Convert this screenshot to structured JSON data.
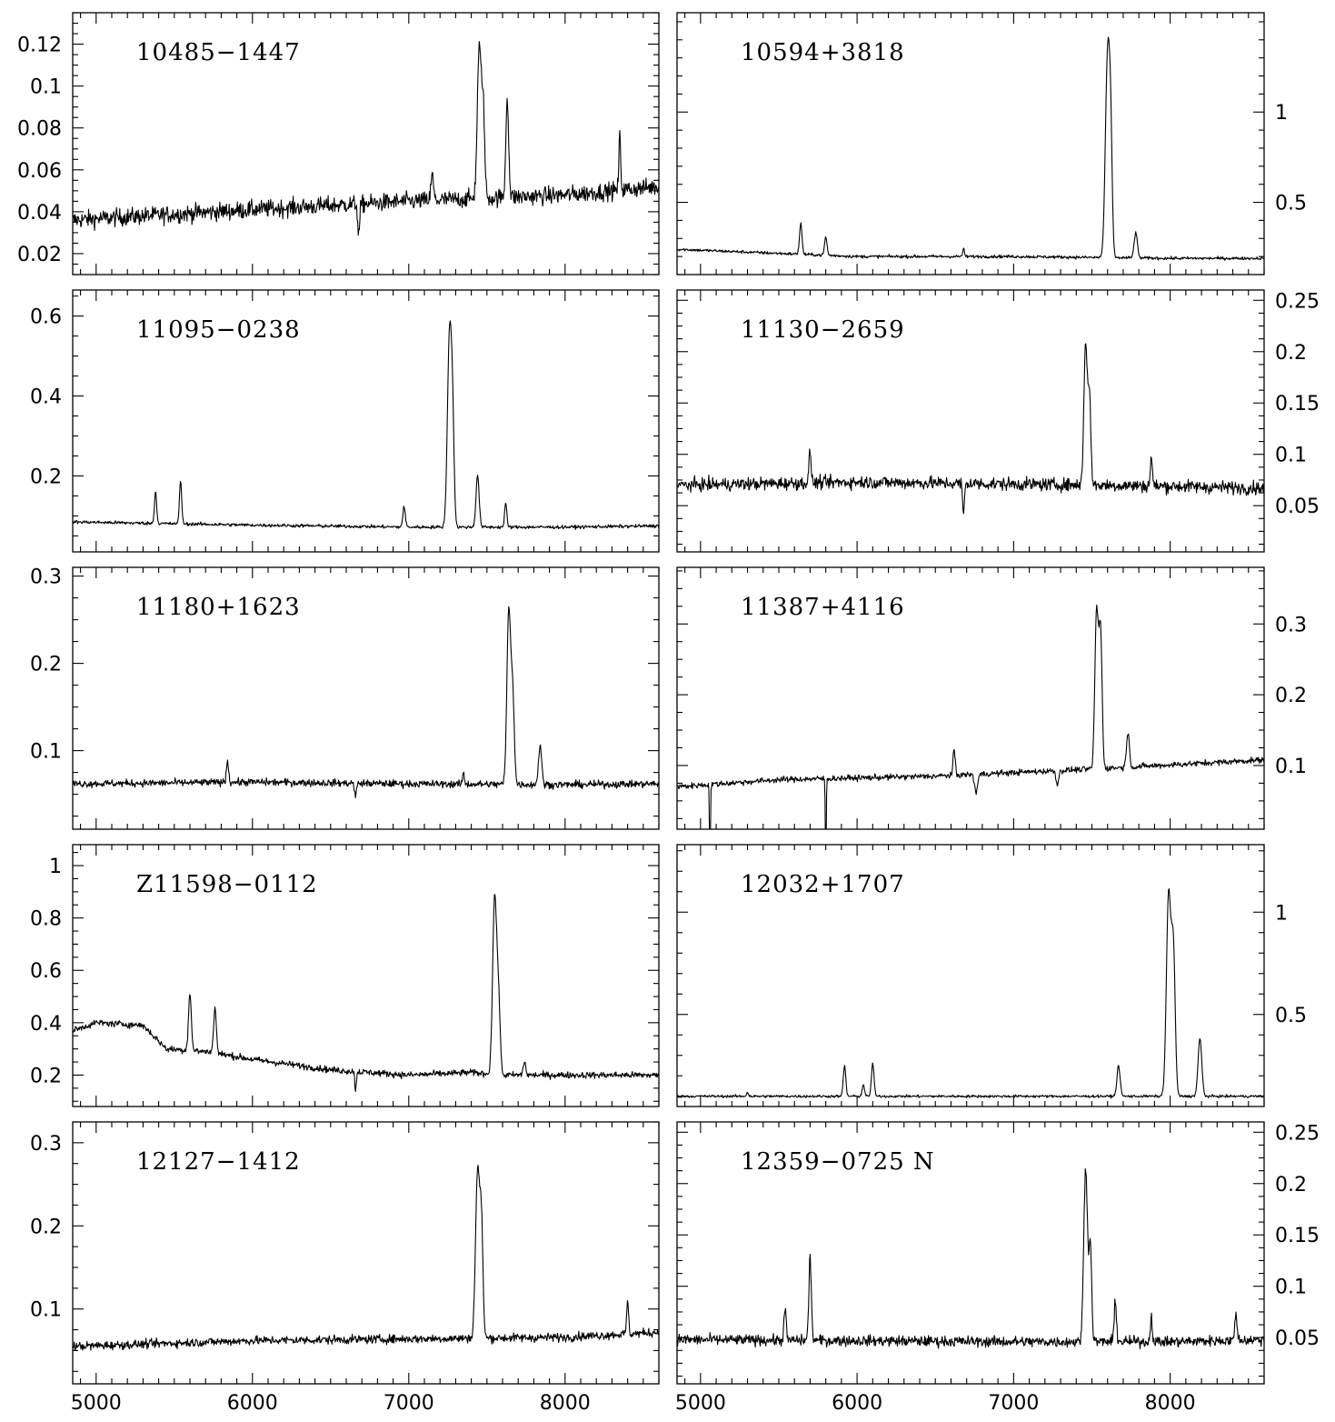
{
  "chart_data": {
    "type": "line",
    "layout": "5 rows x 2 columns, shared x axis",
    "x_axis": {
      "xlim": [
        4850,
        8600
      ],
      "ticks": [
        5000,
        6000,
        7000,
        8000
      ],
      "tick_labels": [
        "5000",
        "6000",
        "7000",
        "8000"
      ],
      "label": ""
    },
    "panels": [
      {
        "name": "10485−1447",
        "column": "left",
        "ylim": [
          0.01,
          0.135
        ],
        "yticks": [
          0.02,
          0.04,
          0.06,
          0.08,
          0.1,
          0.12
        ],
        "ytick_labels": [
          "0.02",
          "0.04",
          "0.06",
          "0.08",
          "0.1",
          "0.12"
        ],
        "continuum": [
          [
            4850,
            0.036
          ],
          [
            6000,
            0.041
          ],
          [
            7000,
            0.045
          ],
          [
            8000,
            0.048
          ],
          [
            8600,
            0.052
          ]
        ],
        "noise": 0.004,
        "lines": [
          [
            7150,
            0.012,
            8
          ],
          [
            7450,
            0.07,
            12
          ],
          [
            7475,
            0.045,
            10
          ],
          [
            7630,
            0.048,
            9
          ],
          [
            8350,
            0.025,
            6
          ],
          [
            6680,
            -0.015,
            6
          ]
        ]
      },
      {
        "name": "10594+3818",
        "column": "right",
        "ylim": [
          0.1,
          1.55
        ],
        "yticks": [
          0.5,
          1
        ],
        "ytick_labels": [
          "0.5",
          "1"
        ],
        "continuum": [
          [
            4850,
            0.24
          ],
          [
            6000,
            0.2
          ],
          [
            7000,
            0.2
          ],
          [
            8000,
            0.19
          ],
          [
            8600,
            0.19
          ]
        ],
        "noise": 0.008,
        "lines": [
          [
            5640,
            0.17,
            8
          ],
          [
            5800,
            0.1,
            8
          ],
          [
            7600,
            1.1,
            14
          ],
          [
            7620,
            0.55,
            10
          ],
          [
            7780,
            0.14,
            10
          ],
          [
            6680,
            0.04,
            6
          ]
        ]
      },
      {
        "name": "11095−0238",
        "column": "left",
        "ylim": [
          0.01,
          0.665
        ],
        "yticks": [
          0.2,
          0.4,
          0.6
        ],
        "ytick_labels": [
          "0.2",
          "0.4",
          "0.6"
        ],
        "continuum": [
          [
            4850,
            0.085
          ],
          [
            6000,
            0.077
          ],
          [
            7000,
            0.072
          ],
          [
            8000,
            0.072
          ],
          [
            8600,
            0.075
          ]
        ],
        "noise": 0.004,
        "lines": [
          [
            5380,
            0.08,
            7
          ],
          [
            5540,
            0.11,
            7
          ],
          [
            6970,
            0.05,
            8
          ],
          [
            7260,
            0.47,
            13
          ],
          [
            7280,
            0.24,
            10
          ],
          [
            7440,
            0.13,
            10
          ],
          [
            7620,
            0.06,
            7
          ]
        ]
      },
      {
        "name": "11130−2659",
        "column": "right",
        "ylim": [
          0.005,
          0.26
        ],
        "yticks": [
          0.05,
          0.1,
          0.15,
          0.2,
          0.25
        ],
        "ytick_labels": [
          "0.05",
          "0.1",
          "0.15",
          "0.2",
          "0.25"
        ],
        "continuum": [
          [
            4850,
            0.07
          ],
          [
            6000,
            0.073
          ],
          [
            7000,
            0.071
          ],
          [
            8000,
            0.069
          ],
          [
            8600,
            0.067
          ]
        ],
        "noise": 0.006,
        "lines": [
          [
            5700,
            0.03,
            7
          ],
          [
            7460,
            0.14,
            11
          ],
          [
            7485,
            0.08,
            9
          ],
          [
            7880,
            0.03,
            6
          ],
          [
            6680,
            -0.03,
            6
          ]
        ]
      },
      {
        "name": "11180+1623",
        "column": "left",
        "ylim": [
          0.01,
          0.31
        ],
        "yticks": [
          0.1,
          0.2,
          0.3
        ],
        "ytick_labels": [
          "0.1",
          "0.2",
          "0.3"
        ],
        "continuum": [
          [
            4850,
            0.062
          ],
          [
            6000,
            0.064
          ],
          [
            7000,
            0.062
          ],
          [
            8000,
            0.061
          ],
          [
            8600,
            0.062
          ]
        ],
        "noise": 0.004,
        "lines": [
          [
            5840,
            0.025,
            7
          ],
          [
            7640,
            0.2,
            12
          ],
          [
            7665,
            0.1,
            10
          ],
          [
            7840,
            0.045,
            10
          ],
          [
            7350,
            0.012,
            6
          ],
          [
            6660,
            -0.015,
            6
          ]
        ]
      },
      {
        "name": "11387+4116",
        "column": "right",
        "ylim": [
          0.01,
          0.38
        ],
        "yticks": [
          0.1,
          0.2,
          0.3
        ],
        "ytick_labels": [
          "0.1",
          "0.2",
          "0.3"
        ],
        "continuum": [
          [
            4850,
            0.07
          ],
          [
            5500,
            0.08
          ],
          [
            6500,
            0.085
          ],
          [
            7500,
            0.095
          ],
          [
            8600,
            0.108
          ]
        ],
        "noise": 0.004,
        "lines": [
          [
            6620,
            0.035,
            7
          ],
          [
            7530,
            0.22,
            11
          ],
          [
            7555,
            0.19,
            10
          ],
          [
            7730,
            0.05,
            9
          ],
          [
            6760,
            -0.025,
            10
          ],
          [
            7280,
            -0.02,
            8
          ],
          [
            5060,
            -0.12,
            3
          ],
          [
            5800,
            -0.12,
            3
          ]
        ]
      },
      {
        "name": "Z11598−0112",
        "column": "left",
        "ylim": [
          0.08,
          1.08
        ],
        "yticks": [
          0.2,
          0.4,
          0.6,
          0.8,
          1
        ],
        "ytick_labels": [
          "0.2",
          "0.4",
          "0.6",
          "0.8",
          "1"
        ],
        "continuum": [
          [
            4850,
            0.37
          ],
          [
            5000,
            0.4
          ],
          [
            5300,
            0.39
          ],
          [
            5450,
            0.3
          ],
          [
            5700,
            0.29
          ],
          [
            6000,
            0.26
          ],
          [
            6500,
            0.22
          ],
          [
            7000,
            0.2
          ],
          [
            7400,
            0.21
          ],
          [
            7600,
            0.2
          ],
          [
            8600,
            0.2
          ]
        ],
        "noise": 0.012,
        "lines": [
          [
            5600,
            0.22,
            9
          ],
          [
            5760,
            0.17,
            9
          ],
          [
            7550,
            0.68,
            13
          ],
          [
            7575,
            0.25,
            10
          ],
          [
            7740,
            0.05,
            8
          ],
          [
            6660,
            -0.07,
            5
          ]
        ]
      },
      {
        "name": "12032+1707",
        "column": "right",
        "ylim": [
          0.05,
          1.33
        ],
        "yticks": [
          0.5,
          1
        ],
        "ytick_labels": [
          "0.5",
          "1"
        ],
        "continuum": [
          [
            4850,
            0.1
          ],
          [
            6000,
            0.1
          ],
          [
            7000,
            0.1
          ],
          [
            8000,
            0.1
          ],
          [
            8600,
            0.1
          ]
        ],
        "noise": 0.006,
        "lines": [
          [
            5920,
            0.15,
            8
          ],
          [
            6040,
            0.06,
            7
          ],
          [
            6100,
            0.16,
            8
          ],
          [
            7670,
            0.15,
            10
          ],
          [
            7990,
            0.98,
            14
          ],
          [
            8020,
            0.7,
            12
          ],
          [
            8190,
            0.28,
            12
          ],
          [
            5300,
            0.02,
            6
          ]
        ]
      },
      {
        "name": "12127−1412",
        "column": "left",
        "ylim": [
          0.01,
          0.325
        ],
        "yticks": [
          0.1,
          0.2,
          0.3
        ],
        "ytick_labels": [
          "0.1",
          "0.2",
          "0.3"
        ],
        "continuum": [
          [
            4850,
            0.055
          ],
          [
            6000,
            0.062
          ],
          [
            7000,
            0.064
          ],
          [
            8000,
            0.066
          ],
          [
            8600,
            0.072
          ]
        ],
        "noise": 0.005,
        "lines": [
          [
            7440,
            0.2,
            13
          ],
          [
            7465,
            0.13,
            10
          ],
          [
            8400,
            0.04,
            6
          ]
        ]
      },
      {
        "name": "12359−0725 N",
        "column": "right",
        "ylim": [
          0.005,
          0.26
        ],
        "yticks": [
          0.05,
          0.1,
          0.15,
          0.2,
          0.25
        ],
        "ytick_labels": [
          "0.05",
          "0.1",
          "0.15",
          "0.2",
          "0.25"
        ],
        "continuum": [
          [
            4850,
            0.048
          ],
          [
            6000,
            0.047
          ],
          [
            7000,
            0.046
          ],
          [
            8000,
            0.046
          ],
          [
            8600,
            0.048
          ]
        ],
        "noise": 0.005,
        "lines": [
          [
            5540,
            0.03,
            7
          ],
          [
            5700,
            0.08,
            8
          ],
          [
            7460,
            0.17,
            12
          ],
          [
            7490,
            0.09,
            9
          ],
          [
            7650,
            0.04,
            7
          ],
          [
            7880,
            0.025,
            6
          ],
          [
            8420,
            0.03,
            6
          ]
        ]
      }
    ]
  }
}
